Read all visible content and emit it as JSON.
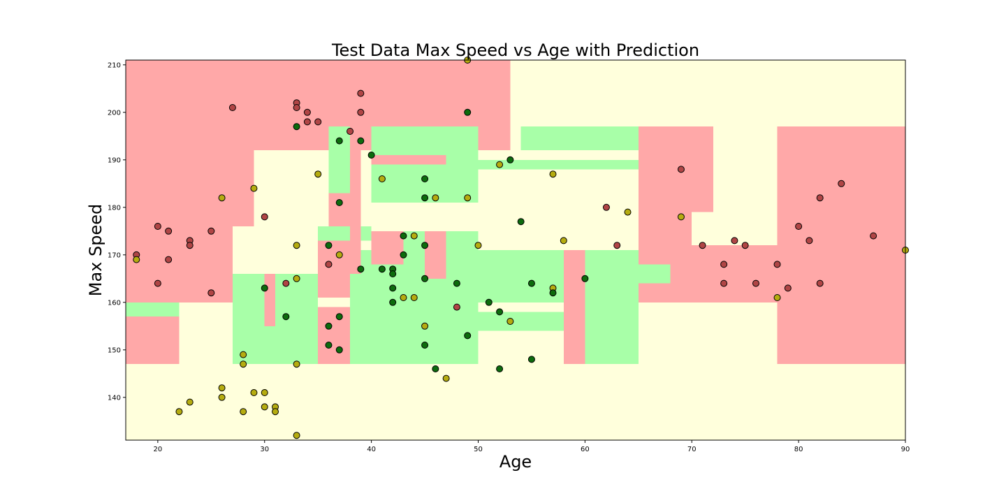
{
  "chart_data": {
    "type": "scatter",
    "title": "Test Data Max Speed vs Age with Prediction",
    "xlabel": "Age",
    "ylabel": "Max Speed",
    "xlim": [
      17,
      90
    ],
    "ylim": [
      131,
      211
    ],
    "xticks": [
      20,
      30,
      40,
      50,
      60,
      70,
      80,
      90
    ],
    "yticks": [
      140,
      150,
      160,
      170,
      180,
      190,
      200,
      210
    ],
    "grid": false,
    "legend": "none",
    "colors": {
      "region_red": "#ffa8a8",
      "region_yellow": "#ffffdc",
      "region_green": "#a8ffa8",
      "point_red": "#b04545",
      "point_yellow": "#b5ac10",
      "point_green": "#0d6b0d",
      "point_edge": "#000000"
    },
    "decision_regions": [
      {
        "class": "red",
        "x": [
          17,
          53
        ],
        "y": [
          192,
          211
        ]
      },
      {
        "class": "red",
        "x": [
          17,
          29
        ],
        "y": [
          176,
          192
        ]
      },
      {
        "class": "red",
        "x": [
          17,
          27
        ],
        "y": [
          160,
          176
        ]
      },
      {
        "class": "red",
        "x": [
          17,
          22
        ],
        "y": [
          147,
          157
        ]
      },
      {
        "class": "green",
        "x": [
          17,
          22
        ],
        "y": [
          157,
          160
        ]
      },
      {
        "class": "green",
        "x": [
          27,
          35
        ],
        "y": [
          147,
          166
        ]
      },
      {
        "class": "red",
        "x": [
          30,
          31
        ],
        "y": [
          155,
          166
        ]
      },
      {
        "class": "red",
        "x": [
          35,
          38
        ],
        "y": [
          147,
          159
        ]
      },
      {
        "class": "red",
        "x": [
          35,
          38
        ],
        "y": [
          161,
          173
        ]
      },
      {
        "class": "green",
        "x": [
          35,
          40
        ],
        "y": [
          173,
          176
        ]
      },
      {
        "class": "green",
        "x": [
          38,
          58
        ],
        "y": [
          147,
          171
        ]
      },
      {
        "class": "red",
        "x": [
          40,
          43
        ],
        "y": [
          168,
          175
        ]
      },
      {
        "class": "red",
        "x": [
          38,
          39
        ],
        "y": [
          166,
          197
        ]
      },
      {
        "class": "green",
        "x": [
          36,
          38
        ],
        "y": [
          183,
          197
        ]
      },
      {
        "class": "red",
        "x": [
          36,
          39
        ],
        "y": [
          176,
          183
        ]
      },
      {
        "class": "green",
        "x": [
          40,
          50
        ],
        "y": [
          181,
          197
        ]
      },
      {
        "class": "red",
        "x": [
          40,
          47
        ],
        "y": [
          189,
          191
        ]
      },
      {
        "class": "green",
        "x": [
          43,
          45
        ],
        "y": [
          169,
          175
        ]
      },
      {
        "class": "red",
        "x": [
          45,
          47
        ],
        "y": [
          165,
          175
        ]
      },
      {
        "class": "green",
        "x": [
          47,
          50
        ],
        "y": [
          171,
          175
        ]
      },
      {
        "class": "yellow",
        "x": [
          50,
          58
        ],
        "y": [
          147,
          154
        ]
      },
      {
        "class": "yellow",
        "x": [
          50,
          58
        ],
        "y": [
          158,
          160
        ]
      },
      {
        "class": "red",
        "x": [
          58,
          60
        ],
        "y": [
          147,
          171
        ]
      },
      {
        "class": "green",
        "x": [
          60,
          65
        ],
        "y": [
          147,
          171
        ]
      },
      {
        "class": "green",
        "x": [
          50,
          65
        ],
        "y": [
          188,
          190
        ]
      },
      {
        "class": "green",
        "x": [
          54,
          65
        ],
        "y": [
          192,
          197
        ]
      },
      {
        "class": "green",
        "x": [
          65,
          68
        ],
        "y": [
          164,
          168
        ]
      },
      {
        "class": "red",
        "x": [
          65,
          72
        ],
        "y": [
          179,
          197
        ]
      },
      {
        "class": "red",
        "x": [
          65,
          70
        ],
        "y": [
          168,
          179
        ]
      },
      {
        "class": "red",
        "x": [
          68,
          78
        ],
        "y": [
          160,
          172
        ]
      },
      {
        "class": "red",
        "x": [
          65,
          68
        ],
        "y": [
          160,
          164
        ]
      },
      {
        "class": "red",
        "x": [
          78,
          90
        ],
        "y": [
          147,
          197
        ]
      }
    ],
    "series": [
      {
        "class": "red",
        "x": [
          18,
          20,
          20,
          21,
          21,
          23,
          23,
          25,
          25,
          27,
          30,
          32,
          33,
          33,
          34,
          34,
          35,
          36,
          38,
          39,
          39,
          48,
          62,
          63,
          69,
          71,
          73,
          73,
          74,
          75,
          76,
          78,
          79,
          80,
          81,
          82,
          82,
          84,
          87
        ],
        "y": [
          170,
          176,
          164,
          175,
          169,
          173,
          172,
          175,
          162,
          201,
          178,
          164,
          202,
          201,
          200,
          198,
          198,
          168,
          196,
          204,
          200,
          159,
          180,
          172,
          188,
          172,
          168,
          164,
          173,
          172,
          164,
          168,
          163,
          176,
          173,
          182,
          164,
          185,
          174
        ]
      },
      {
        "class": "yellow",
        "x": [
          18,
          22,
          23,
          26,
          26,
          26,
          28,
          28,
          28,
          29,
          29,
          30,
          30,
          31,
          31,
          33,
          33,
          33,
          33,
          35,
          37,
          41,
          43,
          44,
          44,
          45,
          46,
          47,
          49,
          49,
          50,
          52,
          53,
          57,
          57,
          58,
          64,
          69,
          78,
          90
        ],
        "y": [
          169,
          137,
          139,
          182,
          142,
          140,
          149,
          147,
          137,
          184,
          141,
          141,
          138,
          138,
          137,
          172,
          165,
          147,
          132,
          187,
          170,
          186,
          161,
          174,
          161,
          155,
          182,
          144,
          211,
          182,
          172,
          189,
          156,
          187,
          163,
          173,
          179,
          178,
          161,
          171
        ]
      },
      {
        "class": "green",
        "x": [
          30,
          32,
          33,
          36,
          36,
          36,
          37,
          37,
          37,
          37,
          39,
          39,
          40,
          41,
          42,
          42,
          42,
          42,
          43,
          43,
          45,
          45,
          45,
          45,
          45,
          46,
          48,
          49,
          49,
          51,
          52,
          52,
          53,
          54,
          55,
          55,
          57,
          60
        ],
        "y": [
          163,
          157,
          197,
          172,
          155,
          151,
          194,
          181,
          157,
          150,
          194,
          167,
          191,
          167,
          167,
          166,
          163,
          160,
          174,
          170,
          186,
          182,
          172,
          165,
          151,
          146,
          164,
          200,
          153,
          160,
          158,
          146,
          190,
          177,
          164,
          148,
          162,
          165
        ]
      }
    ]
  }
}
